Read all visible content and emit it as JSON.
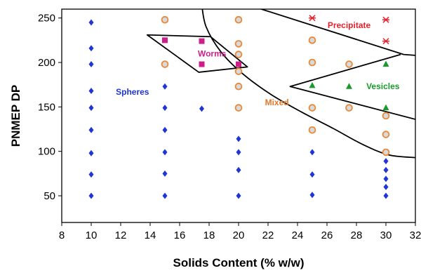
{
  "chart_data": {
    "type": "scatter",
    "xlabel": "Solids Content (% w/w)",
    "ylabel": "PNMEP DP",
    "xlim": [
      8,
      32
    ],
    "ylim": [
      20,
      260
    ],
    "xticks": [
      8,
      10,
      12,
      14,
      16,
      18,
      20,
      22,
      24,
      26,
      28,
      30,
      32
    ],
    "yticks": [
      50,
      100,
      150,
      200,
      250
    ],
    "grid": false,
    "series": [
      {
        "name": "Spheres",
        "marker": "diamond",
        "color": "#1f35d6",
        "points": [
          [
            10,
            245
          ],
          [
            10,
            216
          ],
          [
            10,
            198
          ],
          [
            10,
            168
          ],
          [
            10,
            149
          ],
          [
            10,
            124
          ],
          [
            10,
            98
          ],
          [
            10,
            74
          ],
          [
            10,
            50
          ],
          [
            15,
            173
          ],
          [
            15,
            149
          ],
          [
            15,
            124
          ],
          [
            15,
            99
          ],
          [
            15,
            75
          ],
          [
            15,
            50
          ],
          [
            17.5,
            148
          ],
          [
            20,
            114
          ],
          [
            20,
            99
          ],
          [
            20,
            79
          ],
          [
            20,
            50
          ],
          [
            25,
            99
          ],
          [
            25,
            74
          ],
          [
            25,
            51
          ],
          [
            30,
            89
          ],
          [
            30,
            79
          ],
          [
            30,
            69
          ],
          [
            30,
            60
          ],
          [
            30,
            50
          ]
        ]
      },
      {
        "name": "Worms",
        "marker": "square",
        "color": "#cc1f8a",
        "points": [
          [
            15,
            225
          ],
          [
            17.5,
            224
          ],
          [
            17.5,
            198
          ],
          [
            20,
            198
          ]
        ]
      },
      {
        "name": "Mixed",
        "marker": "circle",
        "color": "#e8893a",
        "points": [
          [
            15,
            248
          ],
          [
            15,
            198
          ],
          [
            20,
            248
          ],
          [
            20,
            221
          ],
          [
            20,
            209
          ],
          [
            20,
            190
          ],
          [
            20,
            173
          ],
          [
            20,
            149
          ],
          [
            25,
            225
          ],
          [
            25,
            200
          ],
          [
            25,
            149
          ],
          [
            25,
            124
          ],
          [
            27.5,
            198
          ],
          [
            27.5,
            149
          ],
          [
            30,
            140
          ],
          [
            30,
            119
          ],
          [
            30,
            99
          ]
        ]
      },
      {
        "name": "Vesicles",
        "marker": "triangle",
        "color": "#1a9a2a",
        "points": [
          [
            25,
            174
          ],
          [
            27.5,
            173
          ],
          [
            30,
            198
          ],
          [
            30,
            149
          ]
        ]
      },
      {
        "name": "Precipitate",
        "marker": "star",
        "color": "#e8202a",
        "points": [
          [
            25,
            250
          ],
          [
            30,
            248
          ],
          [
            30,
            224
          ]
        ]
      }
    ],
    "region_labels": [
      {
        "text": "Spheres",
        "x": 12.8,
        "y": 167,
        "color": "#1f35d6"
      },
      {
        "text": "Worms",
        "x": 18.2,
        "y": 210,
        "color": "#cc1f8a"
      },
      {
        "text": "Mixed",
        "x": 22.6,
        "y": 155,
        "color": "#e07a2a"
      },
      {
        "text": "Precipitate",
        "x": 27.5,
        "y": 242,
        "color": "#e8202a"
      },
      {
        "text": "Vesicles",
        "x": 29.8,
        "y": 173,
        "color": "#1a9a2a"
      }
    ],
    "boundaries": [
      {
        "name": "mixed-boundary-curve",
        "type": "curve",
        "points": [
          [
            17.5,
            265
          ],
          [
            17.8,
            240
          ],
          [
            18.8,
            212
          ],
          [
            20.3,
            187
          ],
          [
            22.2,
            164
          ],
          [
            24.3,
            144
          ],
          [
            26.4,
            126
          ],
          [
            28.4,
            108
          ],
          [
            30.2,
            96
          ],
          [
            32,
            93
          ]
        ]
      },
      {
        "name": "worms-boundary",
        "type": "polygon",
        "points": [
          [
            13.8,
            231
          ],
          [
            18.1,
            229
          ],
          [
            20.6,
            195
          ],
          [
            17.3,
            189
          ]
        ]
      },
      {
        "name": "precipitate-boundary",
        "type": "polyline",
        "points": [
          [
            20.6,
            265
          ],
          [
            31.2,
            209
          ],
          [
            32,
            208
          ]
        ]
      },
      {
        "name": "vesicles-boundary",
        "type": "polyline",
        "points": [
          [
            31,
            209
          ],
          [
            23.5,
            173
          ],
          [
            32,
            136
          ]
        ]
      }
    ]
  }
}
